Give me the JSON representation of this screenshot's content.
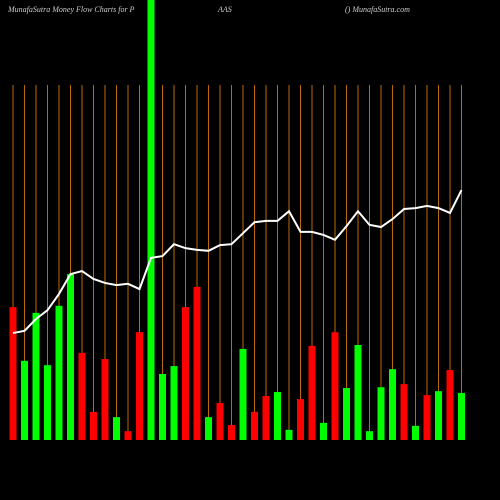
{
  "chart_data": {
    "type": "bar_line",
    "title_parts": [
      "MunafaSutra  Money Flow  Charts for P",
      "AAS",
      "() MunafaSutra.com"
    ],
    "ylim": [
      0,
      100
    ],
    "bars": {
      "values": [
        30.2,
        18,
        28.9,
        17,
        30.5,
        37.7,
        19.8,
        6.4,
        18.4,
        5.2,
        2,
        24.5,
        100,
        15,
        16.8,
        30.2,
        34.8,
        5.2,
        8.4,
        3.4,
        20.7,
        6.4,
        10,
        10.9,
        2.3,
        9.3,
        21.4,
        3.9,
        24.5,
        11.8,
        21.6,
        2,
        12,
        16.1,
        12.7,
        3.2,
        10.2,
        11.1,
        15.9,
        10.7
      ],
      "colors": [
        "#f00",
        "#0f0",
        "#0f0",
        "#0f0",
        "#0f0",
        "#0f0",
        "#f00",
        "#f00",
        "#f00",
        "#0f0",
        "#f00",
        "#f00",
        "#0f0",
        "#0f0",
        "#0f0",
        "#f00",
        "#f00",
        "#0f0",
        "#f00",
        "#f00",
        "#0f0",
        "#f00",
        "#f00",
        "#0f0",
        "#0f0",
        "#f00",
        "#f00",
        "#0f0",
        "#f00",
        "#0f0",
        "#0f0",
        "#0f0",
        "#0f0",
        "#0f0",
        "#f00",
        "#0f0",
        "#f00",
        "#0f0",
        "#f00",
        "#0f0"
      ]
    },
    "line": {
      "color": "#fff",
      "values": [
        24.3,
        24.8,
        27.5,
        29.5,
        33.2,
        37.7,
        38.4,
        36.6,
        35.7,
        35.2,
        35.5,
        34.3,
        41.4,
        41.8,
        44.5,
        43.6,
        43.2,
        43,
        44.3,
        44.5,
        47,
        49.5,
        49.8,
        49.8,
        52,
        47.3,
        47.3,
        46.6,
        45.5,
        48.6,
        52,
        48.9,
        48.4,
        50.2,
        52.5,
        52.7,
        53.2,
        52.7,
        51.6,
        56.8
      ]
    }
  }
}
